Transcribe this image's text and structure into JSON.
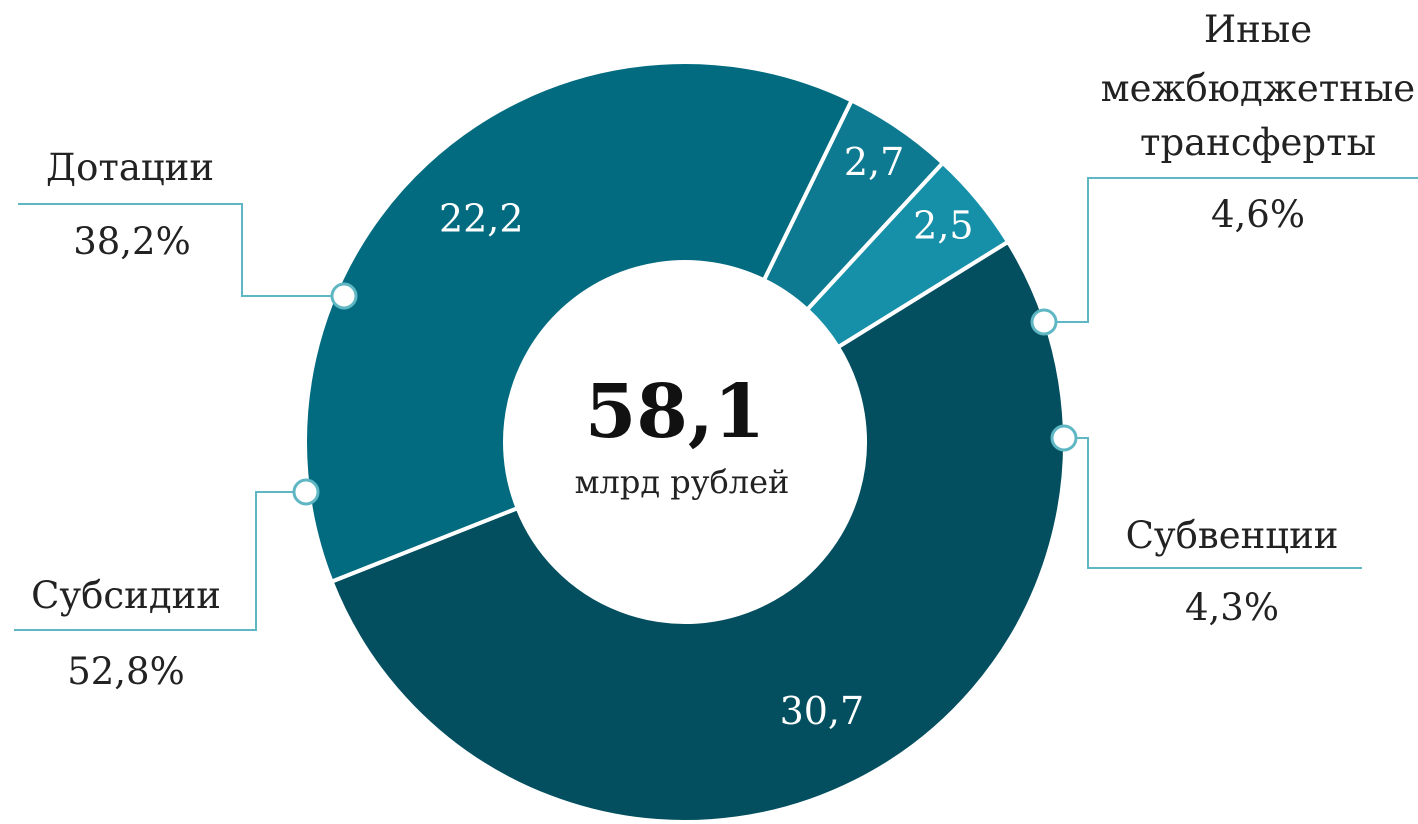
{
  "chart_data": {
    "type": "pie",
    "variant": "donut",
    "center_total": "58,1",
    "center_unit": "млрд рублей",
    "slices": [
      {
        "name": "Иные межбюджетные трансферты",
        "name_lines": [
          "Иные",
          "межбюджетные",
          "трансферты"
        ],
        "value": 2.7,
        "value_label": "2,7",
        "percent_label": "4,6%",
        "color": "#0E7A91"
      },
      {
        "name": "Субвенции",
        "name_lines": [
          "Субвенции"
        ],
        "value": 2.5,
        "value_label": "2,5",
        "percent_label": "4,3%",
        "color": "#1690A8"
      },
      {
        "name": "Субсидии",
        "name_lines": [
          "Субсидии"
        ],
        "value": 30.7,
        "value_label": "30,7",
        "percent_label": "52,8%",
        "color": "#034F5F"
      },
      {
        "name": "Дотации",
        "name_lines": [
          "Дотации"
        ],
        "value": 22.2,
        "value_label": "22,2",
        "percent_label": "38,2%",
        "color": "#036B80"
      }
    ],
    "leader_color": "#5FB7C4"
  }
}
